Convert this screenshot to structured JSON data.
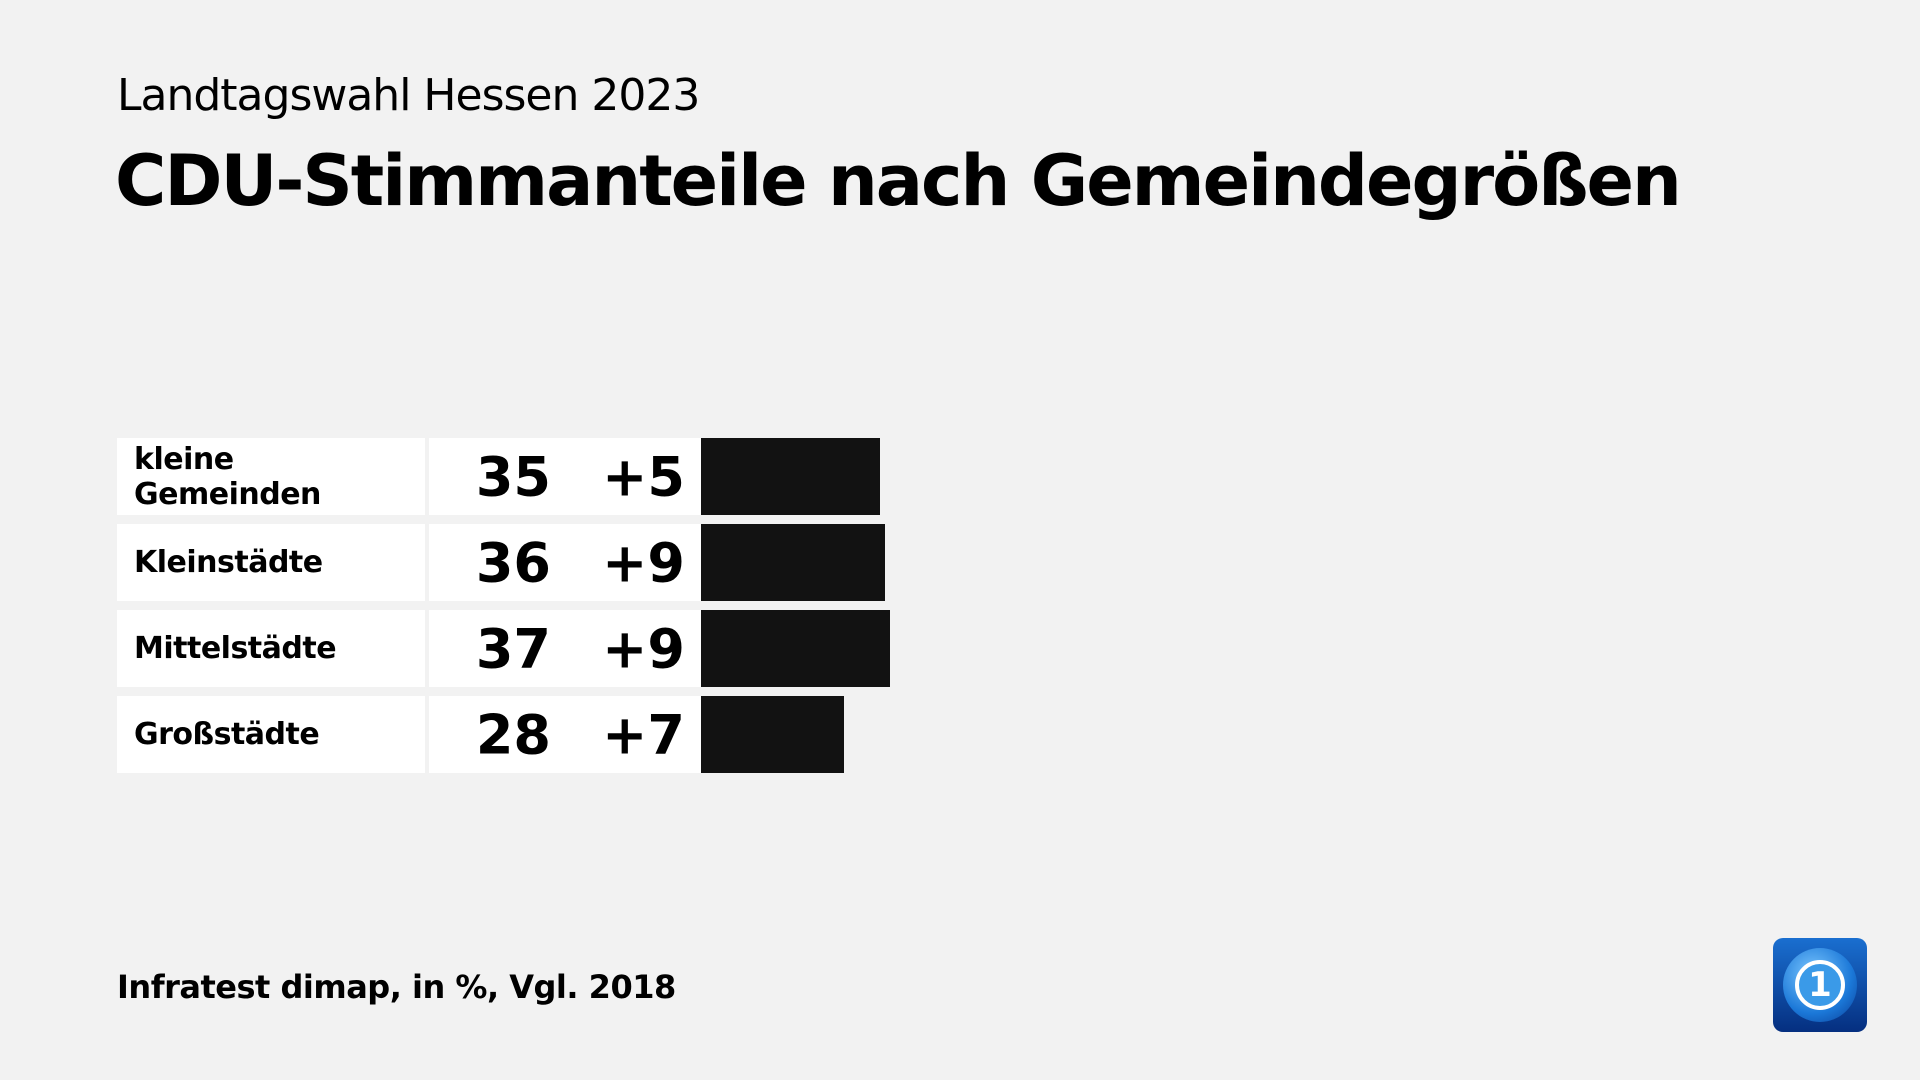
{
  "header": {
    "subtitle": "Landtagswahl Hessen 2023",
    "title": "CDU-Stimmanteile nach Gemeindegrößen"
  },
  "footer": {
    "source": "Infratest dimap, in %, Vgl. 2018"
  },
  "logo": {
    "text": "1",
    "icon": "tagesschau-globe-logo"
  },
  "colors": {
    "bar": "#121212",
    "background": "#f2f2f2",
    "cell": "#ffffff"
  },
  "chart_data": {
    "type": "bar",
    "orientation": "horizontal",
    "title": "CDU-Stimmanteile nach Gemeindegrößen",
    "categories": [
      "kleine Gemeinden",
      "Kleinstädte",
      "Mittelstädte",
      "Großstädte"
    ],
    "values": [
      35,
      36,
      37,
      28
    ],
    "value_labels": [
      "35",
      "36",
      "37",
      "28"
    ],
    "change_labels": [
      "+5",
      "+9",
      "+9",
      "+7"
    ],
    "changes": [
      5,
      9,
      9,
      7
    ],
    "grid": false
  }
}
